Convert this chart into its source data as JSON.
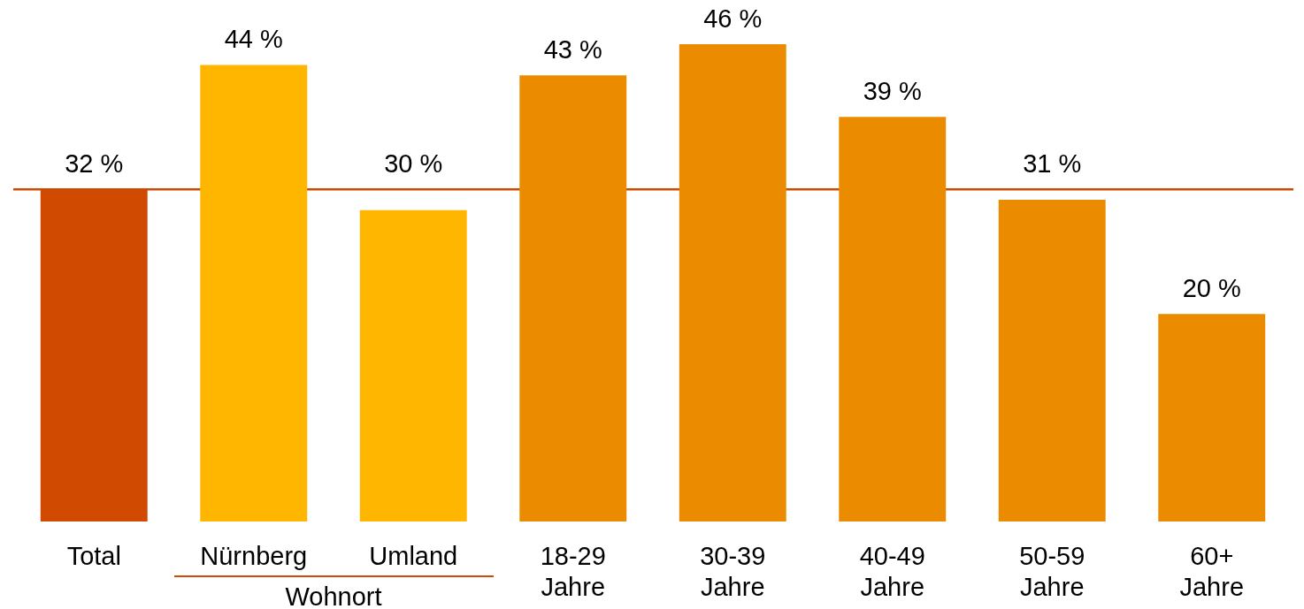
{
  "chart_data": {
    "type": "bar",
    "categories": [
      "Total",
      "Nürnberg",
      "Umland",
      "18-29 Jahre",
      "30-39 Jahre",
      "40-49 Jahre",
      "50-59 Jahre",
      "60+ Jahre"
    ],
    "values": [
      32,
      44,
      30,
      43,
      46,
      39,
      31,
      20
    ],
    "colors": [
      "#d04a02",
      "#ffb600",
      "#ffb600",
      "#eb8c00",
      "#eb8c00",
      "#eb8c00",
      "#eb8c00",
      "#eb8c00"
    ],
    "value_labels": [
      "32 %",
      "44 %",
      "30 %",
      "43 %",
      "46 %",
      "39 %",
      "31 %",
      "20 %"
    ],
    "ylim": [
      0,
      50
    ],
    "tick_labels": "x",
    "ref_lines": [
      {
        "axis": "y",
        "value": 32,
        "color": "#d04a02"
      }
    ],
    "annotations": [
      "Wohnort"
    ]
  }
}
